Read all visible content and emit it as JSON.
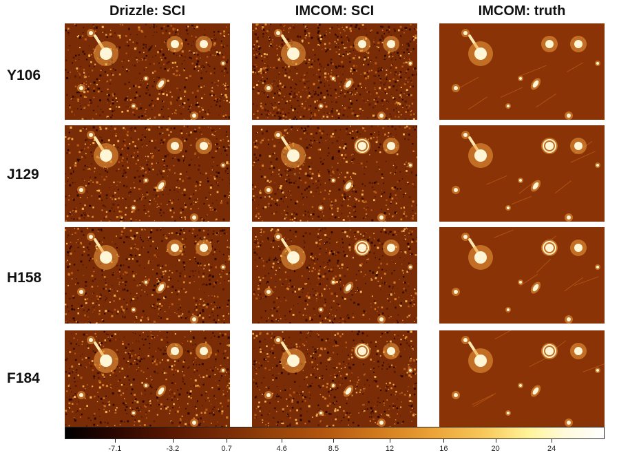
{
  "columns": [
    "Drizzle: SCI",
    "IMCOM: SCI",
    "IMCOM: truth"
  ],
  "rows": [
    "Y106",
    "J129",
    "H158",
    "F184"
  ],
  "colorbar": {
    "ticks": [
      "-7.1",
      "-3.2",
      "0.7",
      "4.6",
      "8.5",
      "12",
      "16",
      "20",
      "24"
    ],
    "colormap": "afmhot-like",
    "colors": {
      "min": "#000000",
      "mid": "#944008",
      "max": "#ffffff"
    }
  },
  "panel_background": {
    "noisy": "#7a2c06",
    "truth": "#8a3306"
  }
}
